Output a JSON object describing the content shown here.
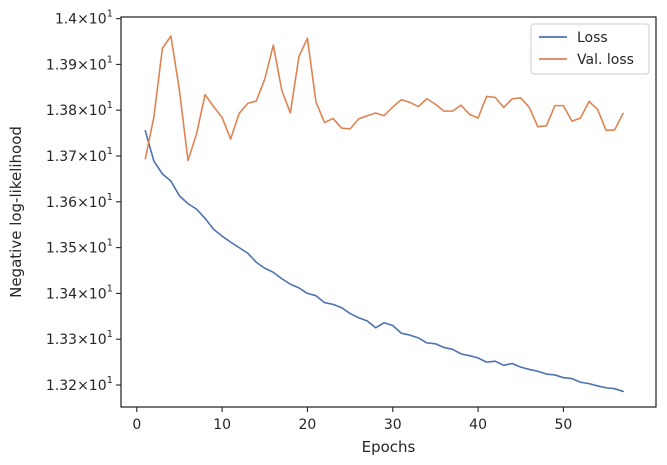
{
  "colors": {
    "loss": "#4c72b0",
    "val_loss": "#dd8452",
    "axes": "#262626",
    "legend_border": "#cccccc"
  },
  "chart_data": {
    "type": "line",
    "title": "",
    "xlabel": "Epochs",
    "ylabel": "Negative log-likelihood",
    "xlim": [
      -1.85,
      60.85
    ],
    "ylim": [
      13.152,
      14.0035
    ],
    "grid": false,
    "legend_position": "top-right",
    "x_ticks": [
      {
        "value": 0,
        "label": "0"
      },
      {
        "value": 10,
        "label": "10"
      },
      {
        "value": 20,
        "label": "20"
      },
      {
        "value": 30,
        "label": "30"
      },
      {
        "value": 40,
        "label": "40"
      },
      {
        "value": 50,
        "label": "50"
      }
    ],
    "y_ticks": [
      {
        "value": 13.2,
        "mantissa": "1.32",
        "exponent": "1"
      },
      {
        "value": 13.3,
        "mantissa": "1.33",
        "exponent": "1"
      },
      {
        "value": 13.4,
        "mantissa": "1.34",
        "exponent": "1"
      },
      {
        "value": 13.5,
        "mantissa": "1.35",
        "exponent": "1"
      },
      {
        "value": 13.6,
        "mantissa": "1.36",
        "exponent": "1"
      },
      {
        "value": 13.7,
        "mantissa": "1.37",
        "exponent": "1"
      },
      {
        "value": 13.8,
        "mantissa": "1.38",
        "exponent": "1"
      },
      {
        "value": 13.9,
        "mantissa": "1.39",
        "exponent": "1"
      },
      {
        "value": 14.0,
        "mantissa": "1.4",
        "exponent": "1"
      }
    ],
    "x": [
      1,
      2,
      3,
      4,
      5,
      6,
      7,
      8,
      9,
      10,
      11,
      12,
      13,
      14,
      15,
      16,
      17,
      18,
      19,
      20,
      21,
      22,
      23,
      24,
      25,
      26,
      27,
      28,
      29,
      30,
      31,
      32,
      33,
      34,
      35,
      36,
      37,
      38,
      39,
      40,
      41,
      42,
      43,
      44,
      45,
      46,
      47,
      48,
      49,
      50,
      51,
      52,
      53,
      54,
      55,
      56,
      57
    ],
    "series": [
      {
        "name": "Loss",
        "values": [
          13.755,
          13.689,
          13.661,
          13.645,
          13.613,
          13.596,
          13.584,
          13.564,
          13.54,
          13.525,
          13.512,
          13.5,
          13.488,
          13.468,
          13.455,
          13.446,
          13.432,
          13.42,
          13.412,
          13.4,
          13.395,
          13.38,
          13.376,
          13.369,
          13.356,
          13.347,
          13.34,
          13.325,
          13.336,
          13.33,
          13.313,
          13.309,
          13.303,
          13.292,
          13.29,
          13.282,
          13.278,
          13.268,
          13.264,
          13.259,
          13.25,
          13.252,
          13.243,
          13.247,
          13.239,
          13.234,
          13.23,
          13.224,
          13.222,
          13.216,
          13.214,
          13.206,
          13.203,
          13.198,
          13.194,
          13.192,
          13.186
        ]
      },
      {
        "name": "Val. loss",
        "values": [
          13.694,
          13.785,
          13.935,
          13.962,
          13.843,
          13.69,
          13.748,
          13.834,
          13.808,
          13.784,
          13.737,
          13.793,
          13.815,
          13.82,
          13.868,
          13.942,
          13.843,
          13.794,
          13.917,
          13.957,
          13.818,
          13.773,
          13.782,
          13.761,
          13.759,
          13.781,
          13.788,
          13.794,
          13.788,
          13.807,
          13.823,
          13.817,
          13.808,
          13.825,
          13.813,
          13.798,
          13.798,
          13.811,
          13.791,
          13.783,
          13.83,
          13.828,
          13.806,
          13.825,
          13.827,
          13.806,
          13.764,
          13.766,
          13.81,
          13.81,
          13.776,
          13.783,
          13.819,
          13.802,
          13.756,
          13.757,
          13.793
        ]
      }
    ]
  }
}
